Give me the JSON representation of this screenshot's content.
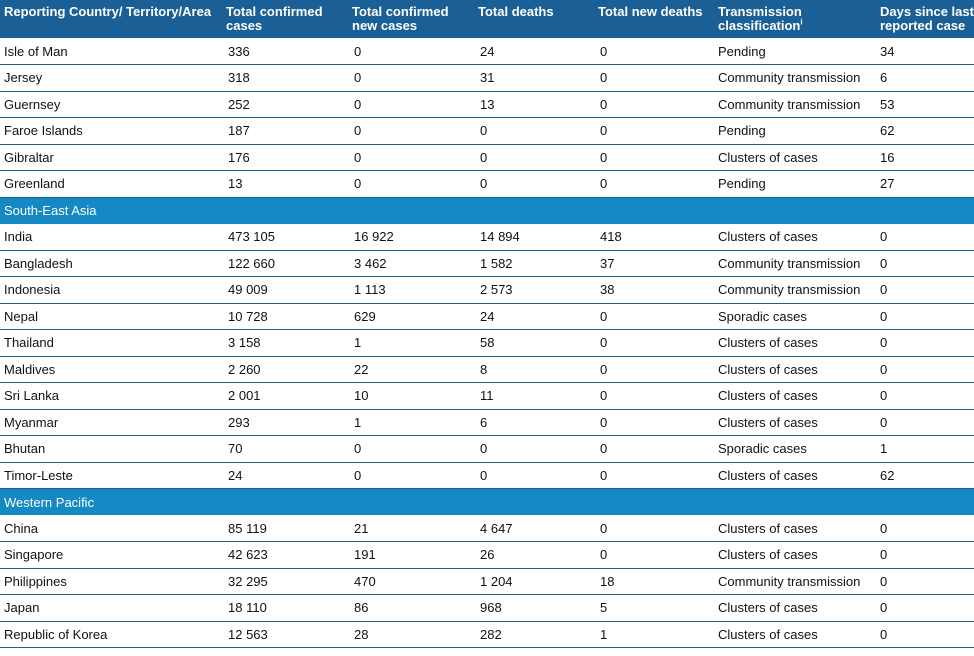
{
  "headers": [
    "Reporting Country/ Territory/Area",
    "Total confirmed cases",
    "Total confirmed new cases",
    "Total deaths",
    "Total new deaths",
    "Transmission classification",
    "Days since last reported case"
  ],
  "transmission_footnote_mark": "i",
  "groups": [
    {
      "region": "",
      "rows": [
        [
          "Isle of Man",
          "336",
          "0",
          "24",
          "0",
          "Pending",
          "34"
        ],
        [
          "Jersey",
          "318",
          "0",
          "31",
          "0",
          "Community transmission",
          "6"
        ],
        [
          "Guernsey",
          "252",
          "0",
          "13",
          "0",
          "Community transmission",
          "53"
        ],
        [
          "Faroe Islands",
          "187",
          "0",
          "0",
          "0",
          "Pending",
          "62"
        ],
        [
          "Gibraltar",
          "176",
          "0",
          "0",
          "0",
          "Clusters of cases",
          "16"
        ],
        [
          "Greenland",
          "13",
          "0",
          "0",
          "0",
          "Pending",
          "27"
        ]
      ]
    },
    {
      "region": "South-East Asia",
      "rows": [
        [
          "India",
          "473 105",
          "16 922",
          "14 894",
          "418",
          "Clusters of cases",
          "0"
        ],
        [
          "Bangladesh",
          "122 660",
          "3 462",
          "1 582",
          "37",
          "Community transmission",
          "0"
        ],
        [
          "Indonesia",
          "49 009",
          "1 113",
          "2 573",
          "38",
          "Community transmission",
          "0"
        ],
        [
          "Nepal",
          "10 728",
          "629",
          "24",
          "0",
          "Sporadic cases",
          "0"
        ],
        [
          "Thailand",
          "3 158",
          "1",
          "58",
          "0",
          "Clusters of cases",
          "0"
        ],
        [
          "Maldives",
          "2 260",
          "22",
          "8",
          "0",
          "Clusters of cases",
          "0"
        ],
        [
          "Sri Lanka",
          "2 001",
          "10",
          "11",
          "0",
          "Clusters of cases",
          "0"
        ],
        [
          "Myanmar",
          "293",
          "1",
          "6",
          "0",
          "Clusters of cases",
          "0"
        ],
        [
          "Bhutan",
          "70",
          "0",
          "0",
          "0",
          "Sporadic cases",
          "1"
        ],
        [
          "Timor-Leste",
          "24",
          "0",
          "0",
          "0",
          "Clusters of cases",
          "62"
        ]
      ]
    },
    {
      "region": "Western Pacific",
      "rows": [
        [
          "China",
          "85 119",
          "21",
          "4 647",
          "0",
          "Clusters of cases",
          "0"
        ],
        [
          "Singapore",
          "42 623",
          "191",
          "26",
          "0",
          "Clusters of cases",
          "0"
        ],
        [
          "Philippines",
          "32 295",
          "470",
          "1 204",
          "18",
          "Community transmission",
          "0"
        ],
        [
          "Japan",
          "18 110",
          "86",
          "968",
          "5",
          "Clusters of cases",
          "0"
        ],
        [
          "Republic of Korea",
          "12 563",
          "28",
          "282",
          "1",
          "Clusters of cases",
          "0"
        ]
      ]
    }
  ],
  "colors": {
    "header_bg": "#1b5f97",
    "region_bg": "#1589c4",
    "rule": "#1b5f97"
  }
}
